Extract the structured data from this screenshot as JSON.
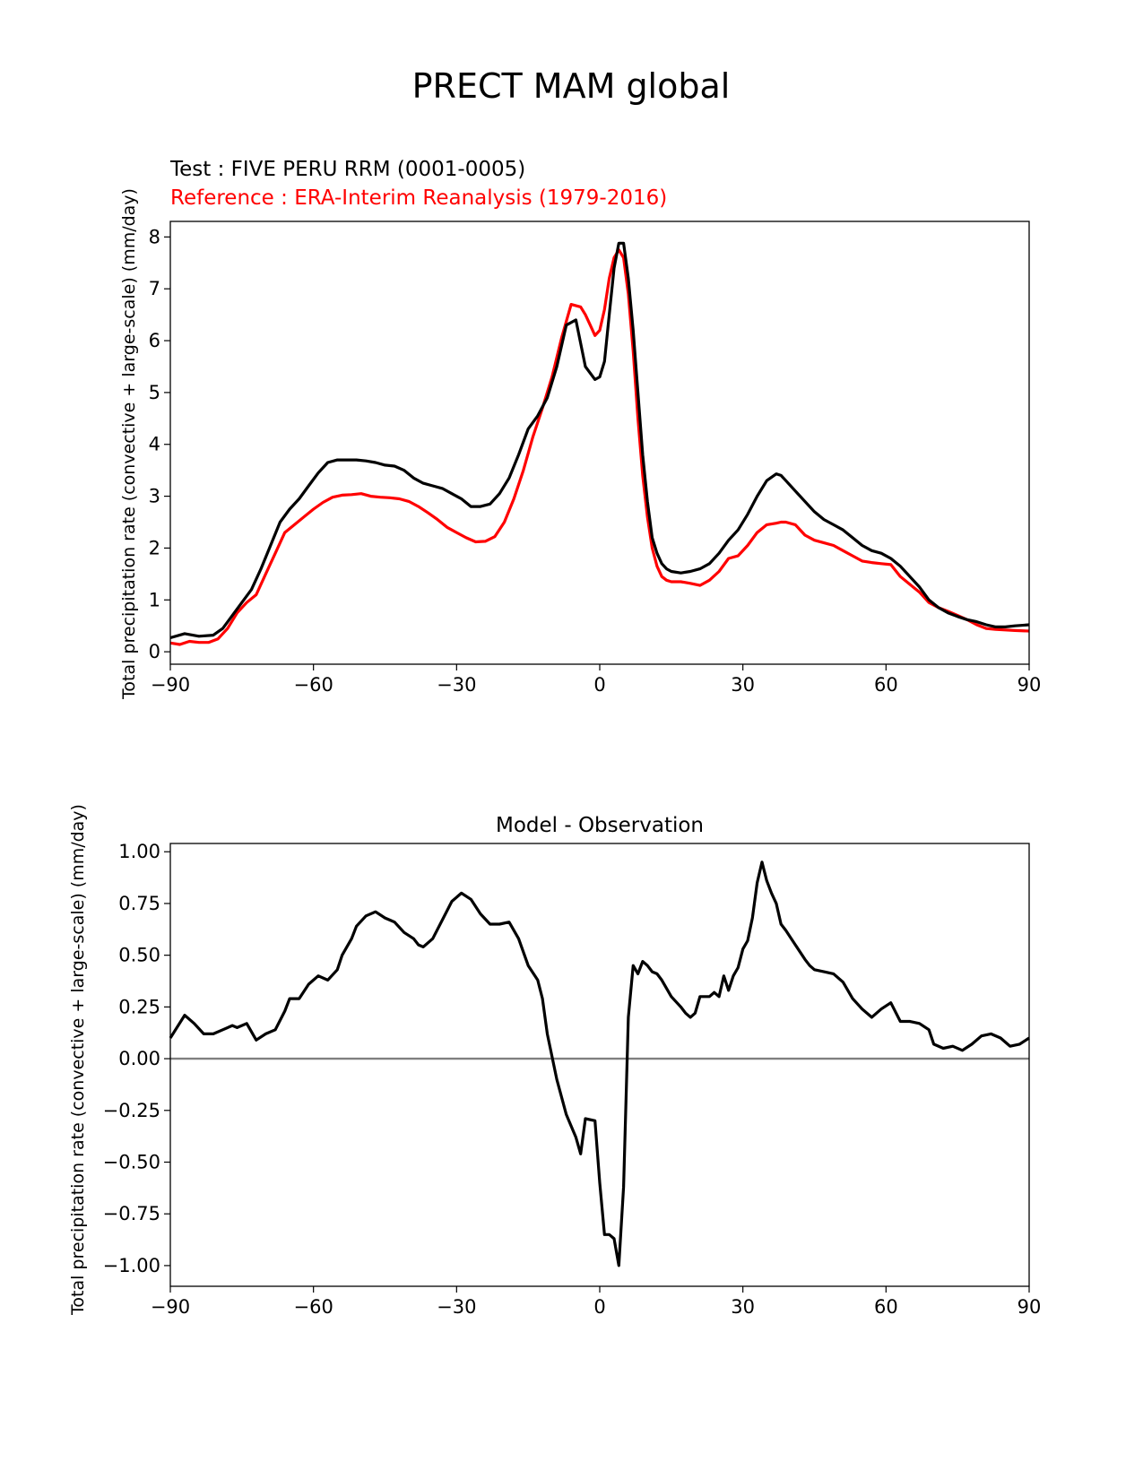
{
  "figure": {
    "title": "PRECT MAM global",
    "colors": {
      "test": "#000000",
      "reference": "#ff0000",
      "zero_line": "#808080"
    }
  },
  "chart_data": [
    {
      "type": "line",
      "test_label": "Test : FIVE PERU RRM (0001-0005)",
      "reference_label": "Reference : ERA-Interim Reanalysis (1979-2016)",
      "xlabel": "",
      "ylabel": "Total precipitation rate (convective + large-scale) (mm/day)",
      "xlim": [
        -90,
        90
      ],
      "ylim": [
        -0.24,
        8.3
      ],
      "xticks": [
        -90,
        -60,
        -30,
        0,
        30,
        60,
        90
      ],
      "xtick_labels": [
        "−90",
        "−60",
        "−30",
        "0",
        "30",
        "60",
        "90"
      ],
      "yticks": [
        0,
        1,
        2,
        3,
        4,
        5,
        6,
        7,
        8
      ],
      "ytick_labels": [
        "0",
        "1",
        "2",
        "3",
        "4",
        "5",
        "6",
        "7",
        "8"
      ],
      "series": [
        {
          "name": "Test",
          "color": "#000000",
          "x": [
            -90,
            -87,
            -84,
            -81,
            -79,
            -77,
            -75,
            -73,
            -71,
            -69,
            -67,
            -65,
            -63,
            -61,
            -59,
            -57,
            -55,
            -53,
            -51,
            -49,
            -47,
            -45,
            -43,
            -41,
            -39,
            -37,
            -35,
            -33,
            -31,
            -29,
            -27,
            -25,
            -23,
            -21,
            -19,
            -17,
            -15,
            -13,
            -11,
            -9,
            -7,
            -5,
            -3,
            -1,
            0,
            1,
            2,
            3,
            4,
            5,
            6,
            7,
            8,
            9,
            10,
            11,
            12,
            13,
            14,
            15,
            17,
            19,
            21,
            23,
            25,
            27,
            29,
            31,
            33,
            35,
            37,
            38,
            39,
            41,
            43,
            45,
            47,
            49,
            51,
            53,
            55,
            57,
            59,
            61,
            63,
            65,
            67,
            69,
            71,
            73,
            75,
            77,
            79,
            81,
            83,
            85,
            87,
            90
          ],
          "values": [
            0.27,
            0.35,
            0.3,
            0.32,
            0.45,
            0.7,
            0.95,
            1.2,
            1.6,
            2.05,
            2.5,
            2.75,
            2.95,
            3.2,
            3.45,
            3.65,
            3.7,
            3.7,
            3.7,
            3.68,
            3.65,
            3.6,
            3.58,
            3.5,
            3.35,
            3.25,
            3.2,
            3.15,
            3.05,
            2.95,
            2.8,
            2.8,
            2.85,
            3.05,
            3.35,
            3.8,
            4.3,
            4.55,
            4.9,
            5.5,
            6.3,
            6.4,
            5.5,
            5.25,
            5.3,
            5.6,
            6.5,
            7.4,
            7.88,
            7.88,
            7.2,
            6.2,
            5.0,
            3.8,
            2.9,
            2.2,
            1.9,
            1.7,
            1.6,
            1.55,
            1.52,
            1.55,
            1.6,
            1.7,
            1.9,
            2.15,
            2.35,
            2.65,
            3.0,
            3.3,
            3.43,
            3.4,
            3.3,
            3.1,
            2.9,
            2.7,
            2.55,
            2.45,
            2.35,
            2.2,
            2.05,
            1.95,
            1.9,
            1.8,
            1.65,
            1.45,
            1.25,
            1.0,
            0.85,
            0.75,
            0.68,
            0.62,
            0.58,
            0.52,
            0.48,
            0.48,
            0.5,
            0.52
          ]
        },
        {
          "name": "Reference",
          "color": "#ff0000",
          "x": [
            -90,
            -88,
            -86,
            -84,
            -82,
            -80,
            -78,
            -76,
            -74,
            -72,
            -70,
            -68,
            -66,
            -64,
            -62,
            -60,
            -58,
            -56,
            -54,
            -52,
            -50,
            -48,
            -46,
            -44,
            -42,
            -40,
            -38,
            -36,
            -34,
            -32,
            -30,
            -28,
            -26,
            -24,
            -22,
            -20,
            -18,
            -16,
            -14,
            -12,
            -10,
            -8,
            -6,
            -4,
            -3,
            -2,
            -1,
            0,
            1,
            2,
            3,
            4,
            5,
            6,
            7,
            8,
            9,
            10,
            11,
            12,
            13,
            14,
            15,
            17,
            19,
            21,
            23,
            25,
            27,
            29,
            31,
            33,
            35,
            37,
            38,
            39,
            41,
            43,
            45,
            47,
            49,
            51,
            53,
            55,
            57,
            59,
            61,
            63,
            65,
            67,
            69,
            71,
            73,
            75,
            77,
            79,
            81,
            83,
            85,
            87,
            90
          ],
          "values": [
            0.17,
            0.14,
            0.2,
            0.18,
            0.18,
            0.25,
            0.45,
            0.75,
            0.95,
            1.1,
            1.5,
            1.9,
            2.3,
            2.45,
            2.6,
            2.75,
            2.88,
            2.98,
            3.02,
            3.03,
            3.05,
            3.0,
            2.98,
            2.97,
            2.95,
            2.9,
            2.8,
            2.68,
            2.55,
            2.4,
            2.3,
            2.2,
            2.12,
            2.13,
            2.22,
            2.5,
            2.95,
            3.5,
            4.15,
            4.7,
            5.3,
            6.05,
            6.7,
            6.65,
            6.5,
            6.3,
            6.1,
            6.2,
            6.6,
            7.2,
            7.6,
            7.75,
            7.6,
            6.9,
            5.8,
            4.5,
            3.4,
            2.6,
            2.0,
            1.65,
            1.45,
            1.38,
            1.35,
            1.35,
            1.32,
            1.28,
            1.38,
            1.55,
            1.8,
            1.85,
            2.05,
            2.3,
            2.45,
            2.48,
            2.5,
            2.5,
            2.45,
            2.25,
            2.15,
            2.1,
            2.05,
            1.95,
            1.85,
            1.75,
            1.72,
            1.7,
            1.68,
            1.45,
            1.3,
            1.15,
            0.95,
            0.85,
            0.78,
            0.7,
            0.62,
            0.52,
            0.45,
            0.43,
            0.42,
            0.41,
            0.4
          ]
        }
      ]
    },
    {
      "type": "line",
      "title": "Model - Observation",
      "xlabel": "",
      "ylabel": "Total precipitation rate (convective + large-scale) (mm/day)",
      "xlim": [
        -90,
        90
      ],
      "ylim": [
        -1.1,
        1.04
      ],
      "xticks": [
        -90,
        -60,
        -30,
        0,
        30,
        60,
        90
      ],
      "xtick_labels": [
        "−90",
        "−60",
        "−30",
        "0",
        "30",
        "60",
        "90"
      ],
      "yticks": [
        1.0,
        0.75,
        0.5,
        0.25,
        0.0,
        -0.25,
        -0.5,
        -0.75,
        -1.0
      ],
      "ytick_labels": [
        "1.00",
        "0.75",
        "0.50",
        "0.25",
        "0.00",
        "−0.25",
        "−0.50",
        "−0.75",
        "−1.00"
      ],
      "zero_line": 0,
      "series": [
        {
          "name": "Model - Observation",
          "color": "#000000",
          "x": [
            -90,
            -87,
            -85,
            -83,
            -81,
            -79,
            -77,
            -76,
            -74,
            -72,
            -70,
            -68,
            -66,
            -65,
            -63,
            -61,
            -59,
            -57,
            -55,
            -54,
            -52,
            -51,
            -49,
            -47,
            -45,
            -44,
            -43,
            -41,
            -39,
            -38,
            -37,
            -35,
            -33,
            -31,
            -29,
            -27,
            -25,
            -23,
            -21,
            -19,
            -17,
            -15,
            -13,
            -12,
            -11,
            -9,
            -7,
            -5,
            -4,
            -3,
            -1,
            0,
            1,
            2,
            3,
            4,
            5,
            6,
            7,
            8,
            9,
            10,
            11,
            12,
            13,
            15,
            17,
            18,
            19,
            20,
            21,
            23,
            24,
            25,
            26,
            27,
            28,
            29,
            30,
            31,
            32,
            33,
            34,
            35,
            36,
            37,
            38,
            39,
            41,
            43,
            44,
            45,
            47,
            49,
            51,
            53,
            55,
            57,
            59,
            61,
            63,
            65,
            67,
            69,
            70,
            72,
            74,
            76,
            78,
            80,
            82,
            84,
            86,
            88,
            90
          ],
          "values": [
            0.1,
            0.21,
            0.17,
            0.12,
            0.12,
            0.14,
            0.16,
            0.15,
            0.17,
            0.09,
            0.12,
            0.14,
            0.23,
            0.29,
            0.29,
            0.36,
            0.4,
            0.38,
            0.43,
            0.5,
            0.58,
            0.64,
            0.69,
            0.71,
            0.68,
            0.67,
            0.66,
            0.61,
            0.58,
            0.55,
            0.54,
            0.58,
            0.67,
            0.76,
            0.8,
            0.77,
            0.7,
            0.65,
            0.65,
            0.66,
            0.58,
            0.45,
            0.38,
            0.29,
            0.12,
            -0.1,
            -0.27,
            -0.38,
            -0.46,
            -0.29,
            -0.3,
            -0.6,
            -0.85,
            -0.85,
            -0.87,
            -1.0,
            -0.62,
            0.2,
            0.45,
            0.41,
            0.47,
            0.45,
            0.42,
            0.41,
            0.38,
            0.3,
            0.25,
            0.22,
            0.2,
            0.22,
            0.3,
            0.3,
            0.32,
            0.3,
            0.4,
            0.33,
            0.4,
            0.44,
            0.53,
            0.57,
            0.68,
            0.85,
            0.95,
            0.86,
            0.8,
            0.75,
            0.65,
            0.62,
            0.55,
            0.48,
            0.45,
            0.43,
            0.42,
            0.41,
            0.37,
            0.29,
            0.24,
            0.2,
            0.24,
            0.27,
            0.18,
            0.18,
            0.17,
            0.14,
            0.07,
            0.05,
            0.06,
            0.04,
            0.07,
            0.11,
            0.12,
            0.1,
            0.06,
            0.07,
            0.1
          ]
        }
      ]
    }
  ]
}
